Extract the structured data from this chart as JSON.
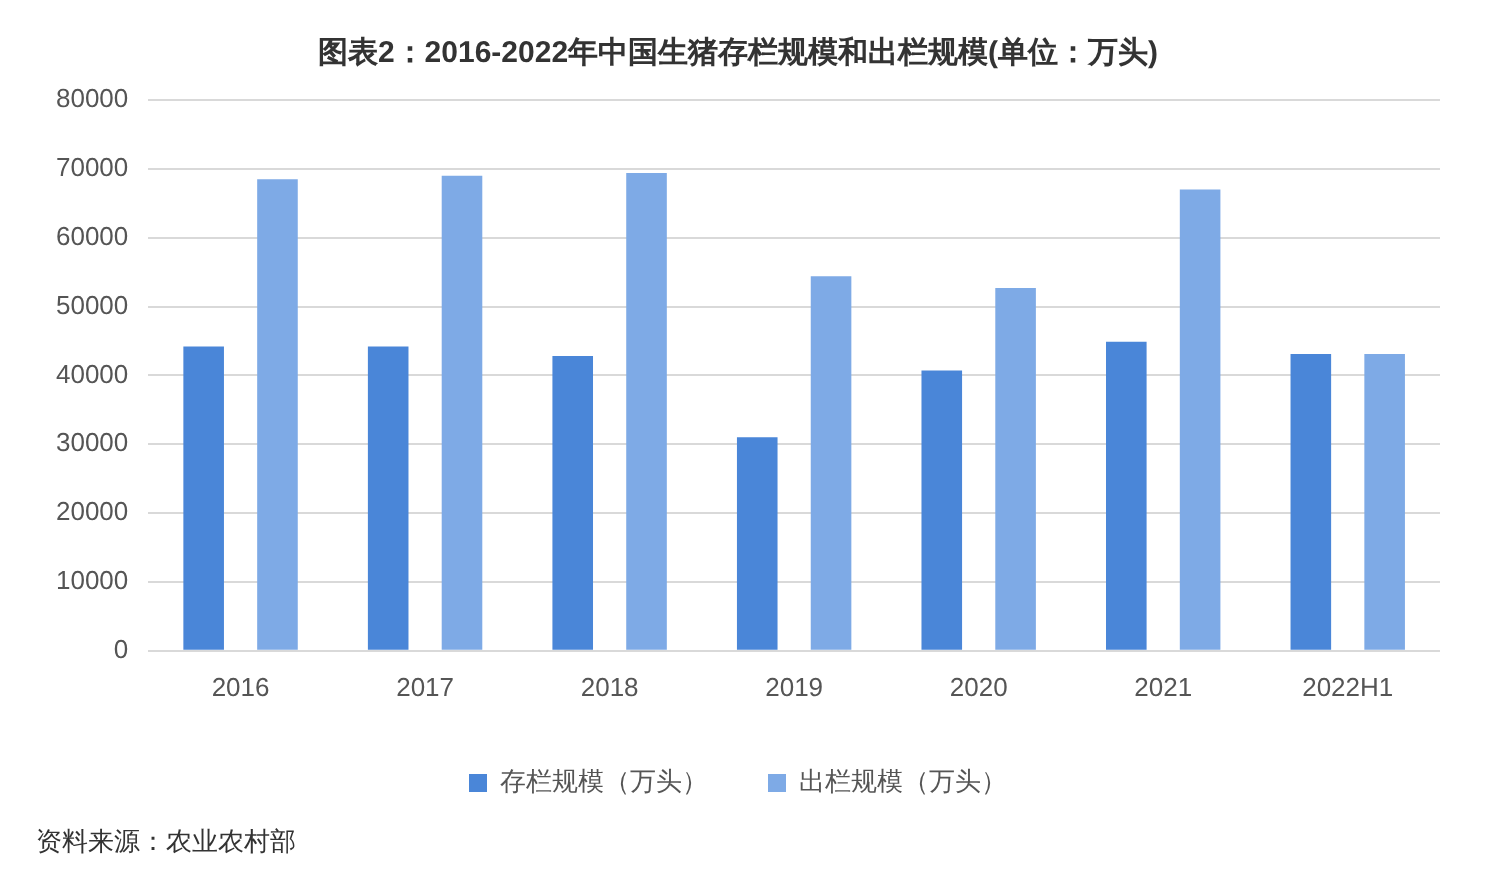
{
  "chart_data": {
    "type": "bar",
    "title": "图表2：2016-2022年中国生猪存栏规模和出栏规模(单位：万头)",
    "categories": [
      "2016",
      "2017",
      "2018",
      "2019",
      "2020",
      "2021",
      "2022H1"
    ],
    "series": [
      {
        "name": "存栏规模（万头）",
        "color": "#4a86d8",
        "values": [
          44200,
          44200,
          42800,
          31000,
          40700,
          44900,
          43100
        ]
      },
      {
        "name": "出栏规模（万头）",
        "color": "#7eaae6",
        "values": [
          68500,
          69000,
          69400,
          54400,
          52700,
          67000,
          43100
        ]
      }
    ],
    "ylim": [
      0,
      80000
    ],
    "yticks": [
      0,
      10000,
      20000,
      30000,
      40000,
      50000,
      60000,
      70000,
      80000
    ],
    "grid": "y",
    "legend": "bottom",
    "annotations": [
      "资料来源：农业农村部"
    ]
  }
}
